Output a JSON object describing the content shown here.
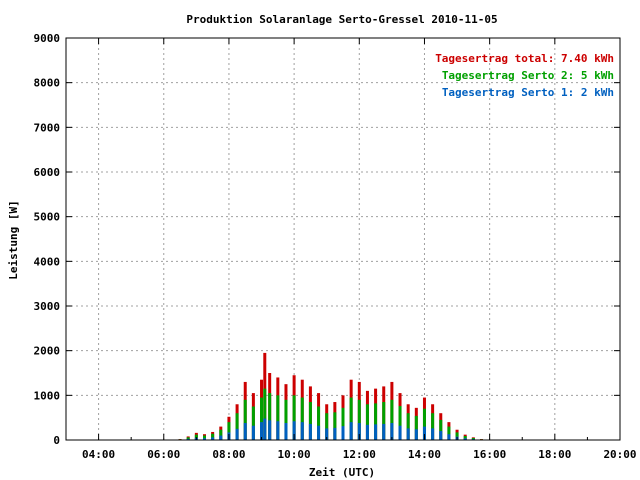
{
  "chart_data": {
    "type": "bar",
    "title": "Produktion Solaranlage Serto-Gressel 2010-11-05",
    "xlabel": "Zeit (UTC)",
    "ylabel": "Leistung [W]",
    "xlim": [
      3,
      20
    ],
    "ylim": [
      0,
      9000
    ],
    "grid": true,
    "legend_position": "top-right",
    "x_ticks": [
      {
        "value": 4,
        "label": "04:00"
      },
      {
        "value": 6,
        "label": "06:00"
      },
      {
        "value": 8,
        "label": "08:00"
      },
      {
        "value": 10,
        "label": "10:00"
      },
      {
        "value": 12,
        "label": "12:00"
      },
      {
        "value": 14,
        "label": "14:00"
      },
      {
        "value": 16,
        "label": "16:00"
      },
      {
        "value": 18,
        "label": "18:00"
      },
      {
        "value": 20,
        "label": "20:00"
      }
    ],
    "y_ticks": [
      {
        "value": 0,
        "label": "0"
      },
      {
        "value": 1000,
        "label": "1000"
      },
      {
        "value": 2000,
        "label": "2000"
      },
      {
        "value": 3000,
        "label": "3000"
      },
      {
        "value": 4000,
        "label": "4000"
      },
      {
        "value": 5000,
        "label": "5000"
      },
      {
        "value": 6000,
        "label": "6000"
      },
      {
        "value": 7000,
        "label": "7000"
      },
      {
        "value": 8000,
        "label": "8000"
      },
      {
        "value": 9000,
        "label": "9000"
      }
    ],
    "legend": [
      {
        "label": "Tagesertrag total: 7.40 kWh",
        "color": "#cc0000"
      },
      {
        "label": "Tagesertrag Serto 2: 5 kWh",
        "color": "#00a000"
      },
      {
        "label": "Tagesertrag Serto 1: 2 kWh",
        "color": "#0060c0"
      }
    ],
    "series": [
      {
        "color": "#cc0000",
        "x": [
          6.5,
          6.75,
          7.0,
          7.25,
          7.5,
          7.75,
          8.0,
          8.25,
          8.5,
          8.75,
          9.0,
          9.1,
          9.25,
          9.5,
          9.75,
          10.0,
          10.25,
          10.5,
          10.75,
          11.0,
          11.25,
          11.5,
          11.75,
          12.0,
          12.25,
          12.5,
          12.75,
          13.0,
          13.25,
          13.5,
          13.75,
          14.0,
          14.25,
          14.5,
          14.75,
          15.0,
          15.25,
          15.5,
          15.75
        ],
        "values": [
          20,
          80,
          160,
          130,
          180,
          300,
          520,
          800,
          1300,
          1050,
          1350,
          1950,
          1500,
          1400,
          1250,
          1450,
          1350,
          1200,
          1050,
          800,
          850,
          1000,
          1350,
          1300,
          1100,
          1150,
          1200,
          1300,
          1050,
          800,
          720,
          950,
          800,
          600,
          400,
          230,
          120,
          60,
          20
        ]
      },
      {
        "color": "#00a000",
        "x": [
          6.5,
          6.75,
          7.0,
          7.25,
          7.5,
          7.75,
          8.0,
          8.25,
          8.5,
          8.75,
          9.0,
          9.1,
          9.25,
          9.5,
          9.75,
          10.0,
          10.25,
          10.5,
          10.75,
          11.0,
          11.25,
          11.5,
          11.75,
          12.0,
          12.25,
          12.5,
          12.75,
          13.0,
          13.25,
          13.5,
          13.75,
          14.0,
          14.25,
          14.5,
          14.75,
          15.0,
          15.25,
          15.5,
          15.75
        ],
        "values": [
          15,
          60,
          120,
          100,
          140,
          230,
          400,
          600,
          900,
          750,
          950,
          1150,
          1050,
          1000,
          900,
          1000,
          950,
          850,
          750,
          600,
          620,
          720,
          950,
          900,
          800,
          820,
          850,
          900,
          760,
          600,
          540,
          700,
          600,
          450,
          300,
          170,
          90,
          45,
          15
        ]
      },
      {
        "color": "#0060c0",
        "x": [
          6.5,
          6.75,
          7.0,
          7.25,
          7.5,
          7.75,
          8.0,
          8.25,
          8.5,
          8.75,
          9.0,
          9.1,
          9.25,
          9.5,
          9.75,
          10.0,
          10.25,
          10.5,
          10.75,
          11.0,
          11.25,
          11.5,
          11.75,
          12.0,
          12.25,
          12.5,
          12.75,
          13.0,
          13.25,
          13.5,
          13.75,
          14.0,
          14.25,
          14.5,
          14.75,
          15.0,
          15.25,
          15.5,
          15.75
        ],
        "values": [
          5,
          25,
          50,
          40,
          60,
          100,
          170,
          250,
          380,
          320,
          400,
          480,
          440,
          420,
          380,
          420,
          400,
          360,
          320,
          260,
          270,
          310,
          400,
          380,
          340,
          350,
          360,
          380,
          320,
          260,
          240,
          300,
          260,
          200,
          130,
          75,
          40,
          20,
          6
        ]
      }
    ]
  }
}
